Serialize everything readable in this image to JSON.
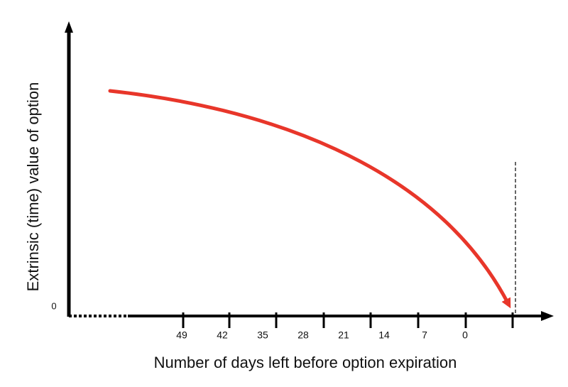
{
  "y_axis": {
    "label": "Extrinsic (time) value of option",
    "zero_label": "0"
  },
  "x_axis": {
    "label": "Number of days left before option expiration",
    "tick_labels": [
      "49",
      "42",
      "35",
      "28",
      "21",
      "14",
      "7",
      "0"
    ]
  }
}
